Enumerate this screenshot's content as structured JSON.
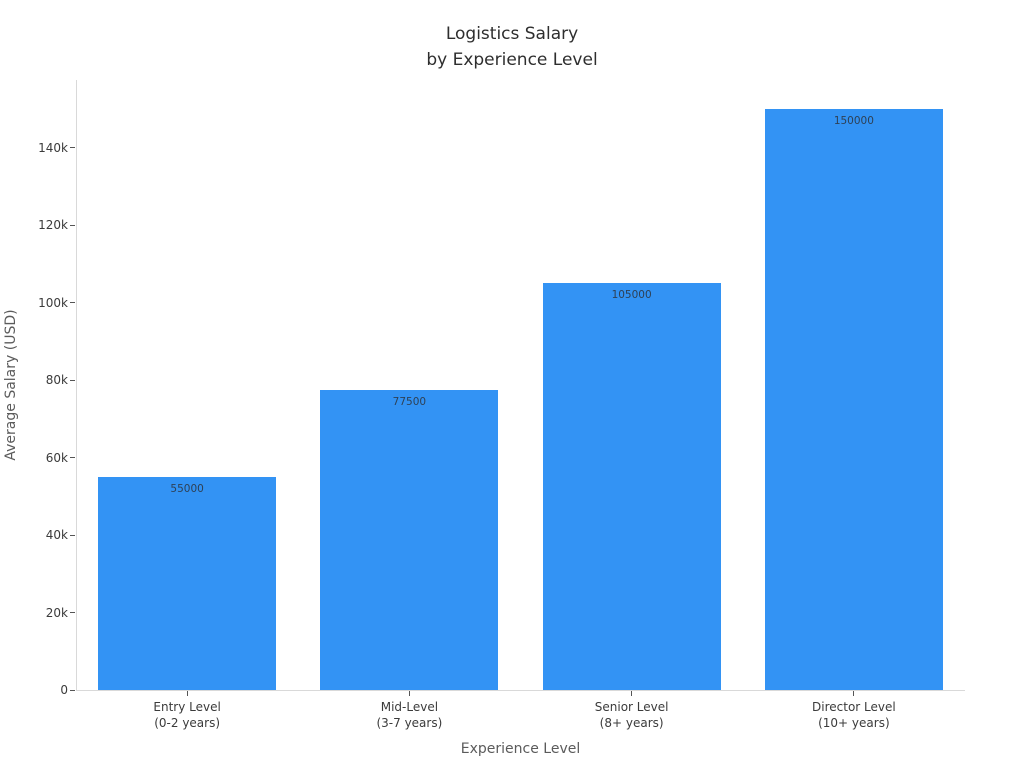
{
  "chart": {
    "title_line1": "Logistics Salary",
    "title_line2": "by Experience Level",
    "xlabel": "Experience Level",
    "ylabel": "Average Salary (USD)"
  },
  "chart_data": {
    "type": "bar",
    "title": "Logistics Salary by Experience Level",
    "xlabel": "Experience Level",
    "ylabel": "Average Salary (USD)",
    "categories": [
      "Entry Level (0-2 years)",
      "Mid-Level (3-7 years)",
      "Senior Level (8+ years)",
      "Director Level (10+ years)"
    ],
    "category_lines": [
      [
        "Entry Level",
        "(0-2 years)"
      ],
      [
        "Mid-Level",
        "(3-7 years)"
      ],
      [
        "Senior Level",
        "(8+ years)"
      ],
      [
        "Director Level",
        "(10+ years)"
      ]
    ],
    "values": [
      55000,
      77500,
      105000,
      150000
    ],
    "bar_labels": [
      "55000",
      "77500",
      "105000",
      "150000"
    ],
    "ylim": [
      0,
      157500
    ],
    "yticks": [
      0,
      20000,
      40000,
      60000,
      80000,
      100000,
      120000,
      140000
    ],
    "ytick_labels": [
      "0",
      "20k",
      "40k",
      "60k",
      "80k",
      "100k",
      "120k",
      "140k"
    ],
    "grid": false,
    "legend": false,
    "bar_width_fraction": 0.8,
    "colors": {
      "bar_fill": "#3393F4",
      "bar_label_text": "#2e4156",
      "axis_line": "#d9d9d9",
      "tick_mark": "#555555",
      "tick_label_text": "#3b3b3b",
      "axis_title_text": "#5b5b5b",
      "title_text": "#2e2e2e"
    }
  }
}
